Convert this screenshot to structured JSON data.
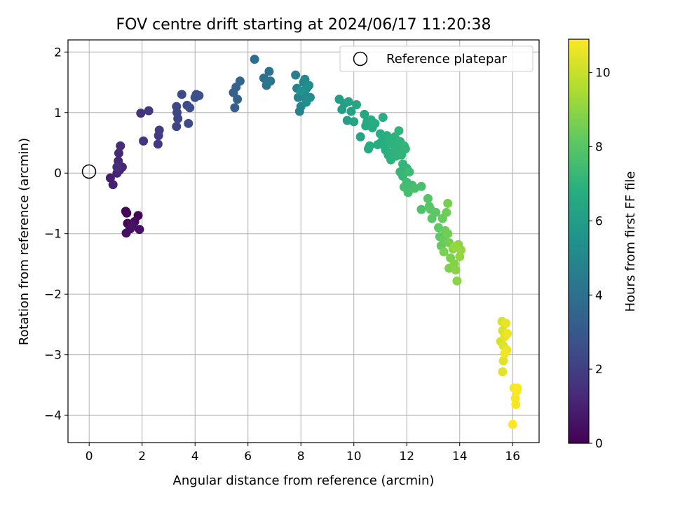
{
  "chart_data": {
    "type": "scatter",
    "title": "FOV centre drift starting at 2024/06/17 11:20:38",
    "xlabel": "Angular distance from reference (arcmin)",
    "ylabel": "Rotation from reference (arcmin)",
    "xlim": [
      -0.8,
      17.0
    ],
    "ylim": [
      -4.45,
      2.2
    ],
    "xticks": [
      0,
      2,
      4,
      6,
      8,
      10,
      12,
      14,
      16
    ],
    "yticks": [
      -4,
      -3,
      -2,
      -1,
      0,
      1,
      2
    ],
    "grid": true,
    "legend": {
      "placement": "top-right",
      "entries": [
        "Reference platepar"
      ]
    },
    "reference": {
      "name": "Reference platepar",
      "x": 0,
      "y": 0
    },
    "colorbar": {
      "label": "Hours from first FF file",
      "range": [
        0,
        10.9
      ],
      "ticks": [
        0,
        2,
        4,
        6,
        8,
        10
      ],
      "colormap": "viridis"
    },
    "series": [
      {
        "color_value_name": "hours",
        "points": [
          [
            1.38,
            -0.63,
            0.1
          ],
          [
            1.42,
            -0.66,
            0.15
          ],
          [
            1.85,
            -0.7,
            0.2
          ],
          [
            1.45,
            -0.83,
            0.25
          ],
          [
            1.6,
            -0.85,
            0.3
          ],
          [
            1.72,
            -0.8,
            0.35
          ],
          [
            1.55,
            -0.92,
            0.4
          ],
          [
            1.9,
            -0.93,
            0.45
          ],
          [
            1.4,
            -0.99,
            0.5
          ],
          [
            1.65,
            -0.88,
            0.55
          ],
          [
            0.8,
            -0.08,
            0.9
          ],
          [
            0.9,
            -0.19,
            1.0
          ],
          [
            1.05,
            0.0,
            1.05
          ],
          [
            1.15,
            0.05,
            1.1
          ],
          [
            1.25,
            0.1,
            1.15
          ],
          [
            1.1,
            0.2,
            1.2
          ],
          [
            1.12,
            0.33,
            1.25
          ],
          [
            1.18,
            0.45,
            1.3
          ],
          [
            1.05,
            0.1,
            1.35
          ],
          [
            1.95,
            0.99,
            1.6
          ],
          [
            2.05,
            0.53,
            1.65
          ],
          [
            2.25,
            1.03,
            1.7
          ],
          [
            2.6,
            0.48,
            1.8
          ],
          [
            2.62,
            0.62,
            1.85
          ],
          [
            2.65,
            0.71,
            1.9
          ],
          [
            3.3,
            0.77,
            2.2
          ],
          [
            3.35,
            0.9,
            2.25
          ],
          [
            3.32,
            1.0,
            2.3
          ],
          [
            3.3,
            1.1,
            2.35
          ],
          [
            3.5,
            1.3,
            2.4
          ],
          [
            3.7,
            1.12,
            2.45
          ],
          [
            3.75,
            0.82,
            2.5
          ],
          [
            3.8,
            1.08,
            2.55
          ],
          [
            4.0,
            1.25,
            2.6
          ],
          [
            4.05,
            1.3,
            2.65
          ],
          [
            4.15,
            1.28,
            2.7
          ],
          [
            5.45,
            1.33,
            3.3
          ],
          [
            5.5,
            1.08,
            3.35
          ],
          [
            5.55,
            1.42,
            3.4
          ],
          [
            5.6,
            1.22,
            3.45
          ],
          [
            5.7,
            1.52,
            3.5
          ],
          [
            6.25,
            1.88,
            3.9
          ],
          [
            6.6,
            1.57,
            4.0
          ],
          [
            6.7,
            1.45,
            4.05
          ],
          [
            6.8,
            1.68,
            4.1
          ],
          [
            6.85,
            1.52,
            4.15
          ],
          [
            6.75,
            1.5,
            4.2
          ],
          [
            7.8,
            1.62,
            4.7
          ],
          [
            7.85,
            1.4,
            4.75
          ],
          [
            7.9,
            1.25,
            4.8
          ],
          [
            7.95,
            1.02,
            4.85
          ],
          [
            8.0,
            1.1,
            4.9
          ],
          [
            8.05,
            1.33,
            4.95
          ],
          [
            8.1,
            1.5,
            5.0
          ],
          [
            8.12,
            1.3,
            5.05
          ],
          [
            8.15,
            1.55,
            5.1
          ],
          [
            8.18,
            1.38,
            5.15
          ],
          [
            8.2,
            1.22,
            5.2
          ],
          [
            8.25,
            1.42,
            5.25
          ],
          [
            8.3,
            1.45,
            5.3
          ],
          [
            8.35,
            1.25,
            5.35
          ],
          [
            8.2,
            1.17,
            5.4
          ],
          [
            8.0,
            1.35,
            5.45
          ],
          [
            9.45,
            1.22,
            6.0
          ],
          [
            9.55,
            1.05,
            6.05
          ],
          [
            9.65,
            1.15,
            6.1
          ],
          [
            9.75,
            0.87,
            6.15
          ],
          [
            9.8,
            1.18,
            6.2
          ],
          [
            9.9,
            1.02,
            6.25
          ],
          [
            10.0,
            0.85,
            6.3
          ],
          [
            10.1,
            1.13,
            6.35
          ],
          [
            10.25,
            0.6,
            6.4
          ],
          [
            10.4,
            0.97,
            6.45
          ],
          [
            10.45,
            0.78,
            6.6
          ],
          [
            10.5,
            0.85,
            6.62
          ],
          [
            10.55,
            0.4,
            6.64
          ],
          [
            10.6,
            0.45,
            6.66
          ],
          [
            10.65,
            0.88,
            6.68
          ],
          [
            10.7,
            0.75,
            6.7
          ],
          [
            10.8,
            0.82,
            6.72
          ],
          [
            10.9,
            0.47,
            6.74
          ],
          [
            11.0,
            0.65,
            6.76
          ],
          [
            11.05,
            0.52,
            6.78
          ],
          [
            11.1,
            0.92,
            6.8
          ],
          [
            11.15,
            0.45,
            6.82
          ],
          [
            11.2,
            0.38,
            6.84
          ],
          [
            11.25,
            0.62,
            6.86
          ],
          [
            11.3,
            0.3,
            6.88
          ],
          [
            11.35,
            0.55,
            6.9
          ],
          [
            11.4,
            0.22,
            6.92
          ],
          [
            11.45,
            0.48,
            6.94
          ],
          [
            11.5,
            0.35,
            6.96
          ],
          [
            11.55,
            0.6,
            6.98
          ],
          [
            11.6,
            0.28,
            7.0
          ],
          [
            11.65,
            0.42,
            7.02
          ],
          [
            11.7,
            0.7,
            7.04
          ],
          [
            11.75,
            0.52,
            7.06
          ],
          [
            11.8,
            0.3,
            7.08
          ],
          [
            11.85,
            0.15,
            7.1
          ],
          [
            11.9,
            0.45,
            7.12
          ],
          [
            11.95,
            0.4,
            7.14
          ],
          [
            12.0,
            0.08,
            7.16
          ],
          [
            11.75,
            0.02,
            7.18
          ],
          [
            11.85,
            -0.05,
            7.2
          ],
          [
            12.1,
            0.02,
            7.4
          ],
          [
            12.0,
            -0.15,
            7.45
          ],
          [
            12.2,
            -0.2,
            7.5
          ],
          [
            11.9,
            -0.23,
            7.55
          ],
          [
            12.05,
            -0.32,
            7.6
          ],
          [
            12.3,
            -0.25,
            7.65
          ],
          [
            12.55,
            -0.22,
            7.7
          ],
          [
            12.55,
            -0.6,
            7.75
          ],
          [
            12.8,
            -0.42,
            7.9
          ],
          [
            12.85,
            -0.55,
            7.95
          ],
          [
            12.9,
            -0.6,
            8.0
          ],
          [
            12.95,
            -0.75,
            8.05
          ],
          [
            13.1,
            -0.65,
            8.1
          ],
          [
            13.2,
            -0.9,
            8.15
          ],
          [
            13.25,
            -1.05,
            8.2
          ],
          [
            13.3,
            -1.2,
            8.25
          ],
          [
            13.35,
            -0.75,
            8.3
          ],
          [
            13.4,
            -1.1,
            8.35
          ],
          [
            13.45,
            -0.95,
            8.4
          ],
          [
            13.5,
            -0.65,
            8.45
          ],
          [
            13.55,
            -1.0,
            8.5
          ],
          [
            13.6,
            -1.15,
            8.55
          ],
          [
            13.55,
            -0.5,
            8.6
          ],
          [
            13.4,
            -1.3,
            8.65
          ],
          [
            13.65,
            -1.4,
            8.7
          ],
          [
            13.6,
            -1.57,
            8.75
          ],
          [
            13.75,
            -1.25,
            8.8
          ],
          [
            13.8,
            -1.5,
            8.85
          ],
          [
            13.85,
            -1.6,
            8.9
          ],
          [
            13.9,
            -1.78,
            8.95
          ],
          [
            13.95,
            -1.18,
            9.0
          ],
          [
            14.0,
            -1.38,
            9.05
          ],
          [
            14.05,
            -1.27,
            9.1
          ],
          [
            13.8,
            -1.22,
            9.15
          ],
          [
            15.55,
            -2.78,
            10.2
          ],
          [
            15.6,
            -2.45,
            10.25
          ],
          [
            15.62,
            -2.6,
            10.3
          ],
          [
            15.65,
            -2.85,
            10.35
          ],
          [
            15.65,
            -3.1,
            10.4
          ],
          [
            15.62,
            -3.28,
            10.45
          ],
          [
            15.7,
            -2.7,
            10.5
          ],
          [
            15.75,
            -2.48,
            10.55
          ],
          [
            15.78,
            -2.92,
            10.6
          ],
          [
            15.8,
            -2.65,
            10.65
          ],
          [
            15.7,
            -2.98,
            10.7
          ],
          [
            16.05,
            -3.55,
            10.75
          ],
          [
            16.1,
            -3.72,
            10.8
          ],
          [
            16.12,
            -3.82,
            10.82
          ],
          [
            16.15,
            -3.6,
            10.85
          ],
          [
            16.0,
            -4.15,
            10.9
          ],
          [
            16.18,
            -3.55,
            10.88
          ]
        ]
      }
    ]
  }
}
